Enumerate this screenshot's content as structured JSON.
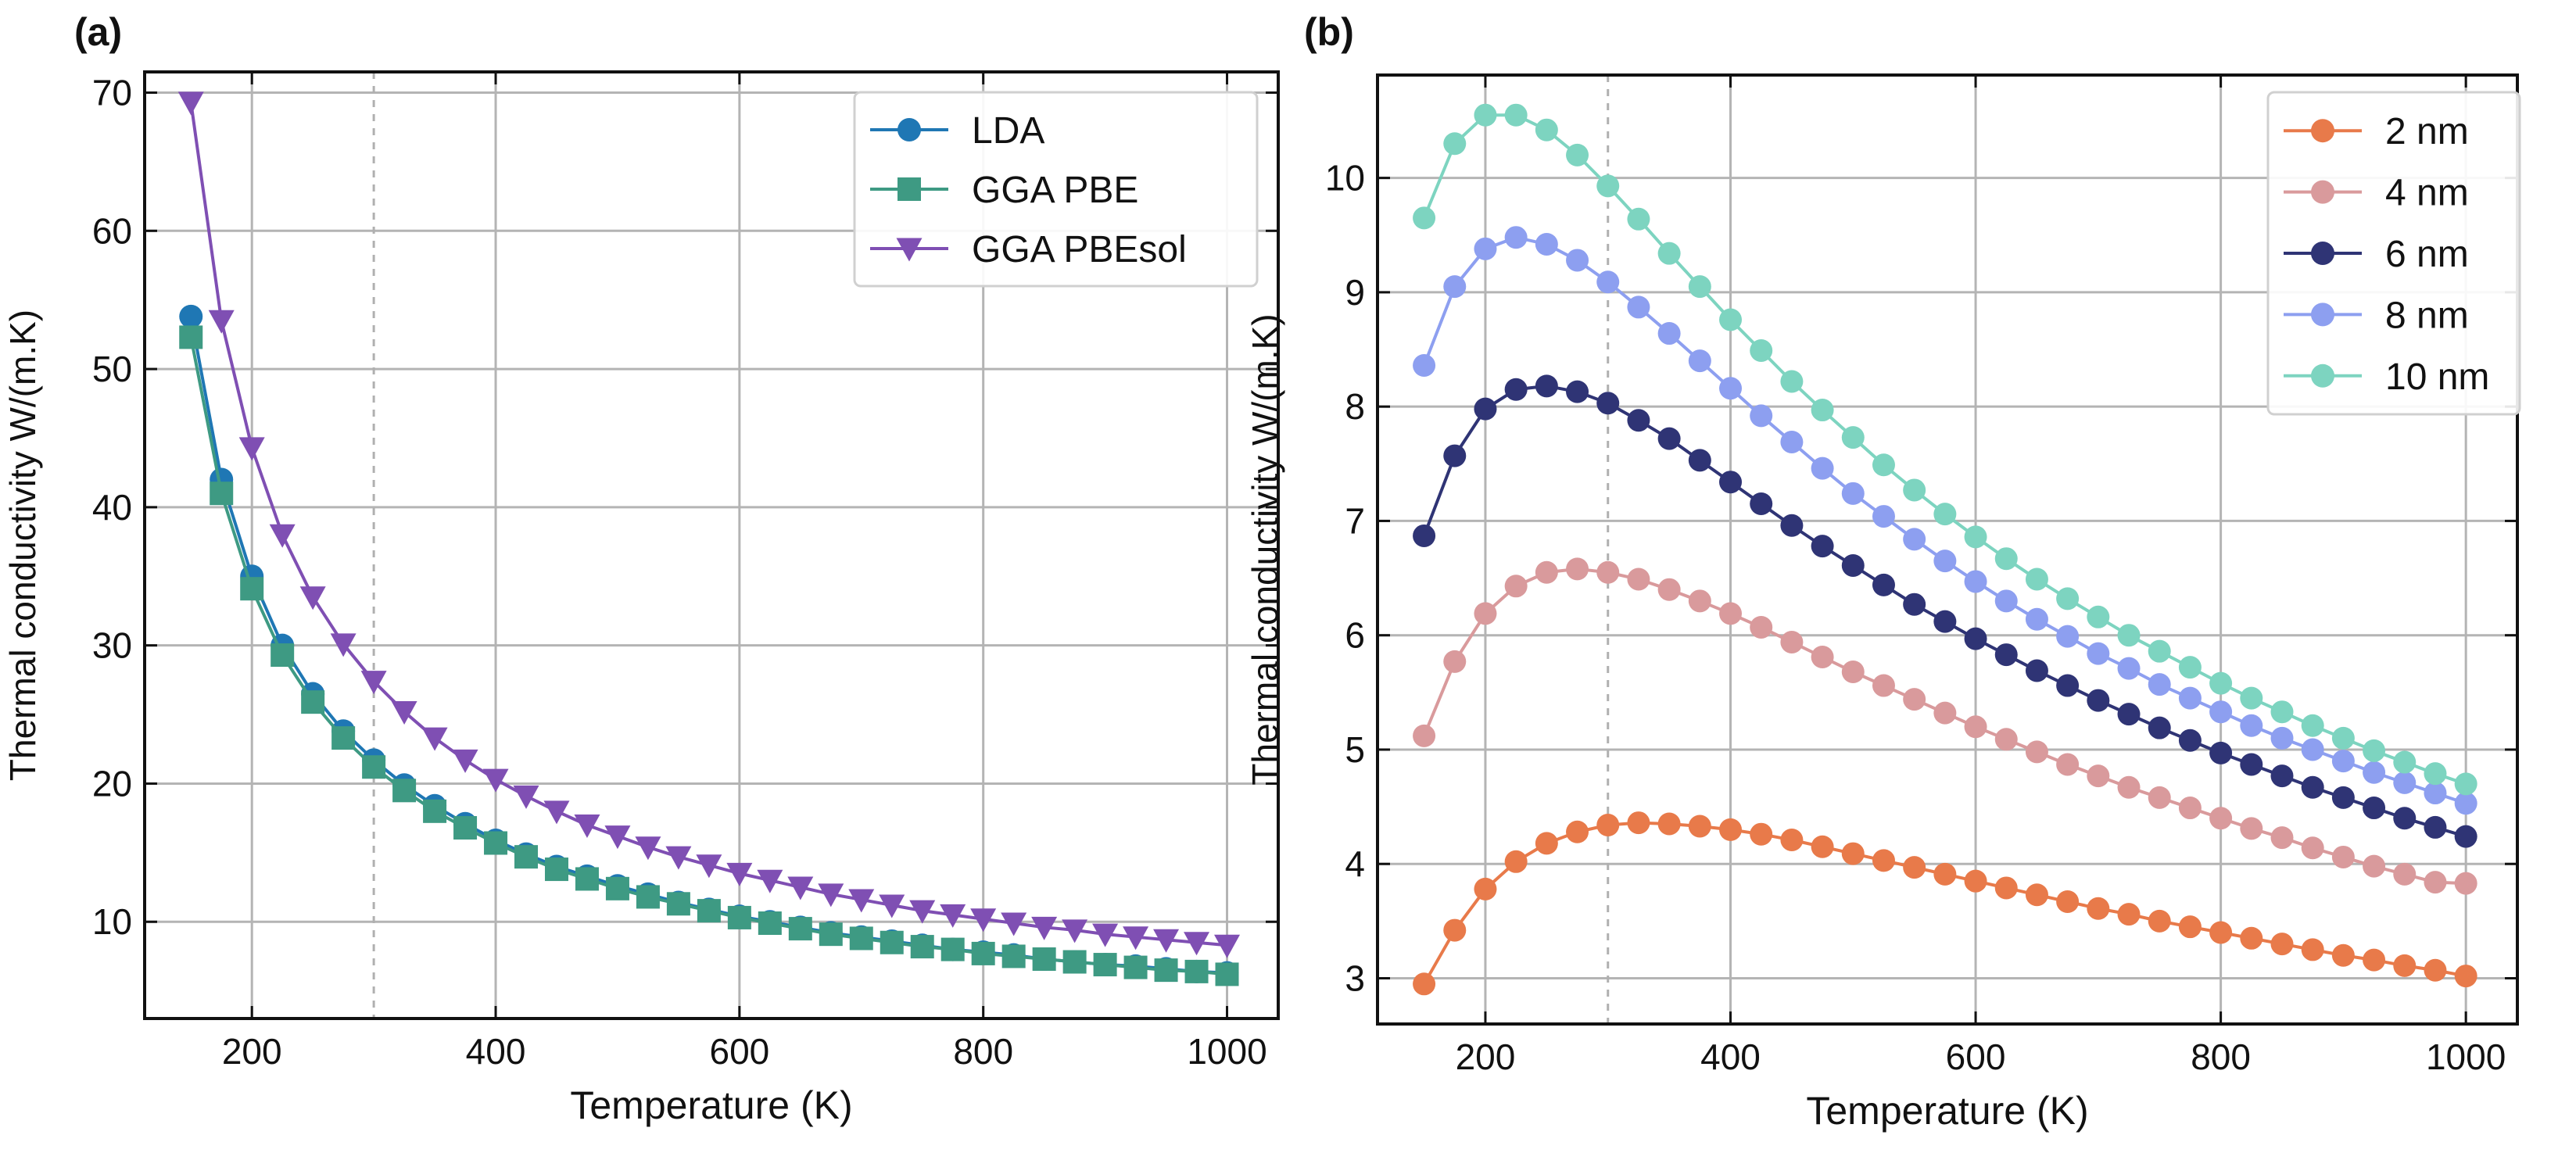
{
  "chart_data": [
    {
      "panel_label": "(a)",
      "type": "line",
      "xlabel": "Temperature (K)",
      "ylabel": "Thermal conductivity W/(m.K)",
      "xlim": [
        112,
        1042
      ],
      "ylim": [
        3,
        71.5
      ],
      "xticks": [
        200,
        400,
        600,
        800,
        1000
      ],
      "yticks": [
        10,
        20,
        30,
        40,
        50,
        60,
        70
      ],
      "grid": true,
      "vline": 300,
      "legend_position": "top-right",
      "x": [
        150,
        175,
        200,
        225,
        250,
        275,
        300,
        325,
        350,
        375,
        400,
        425,
        450,
        475,
        500,
        525,
        550,
        575,
        600,
        625,
        650,
        675,
        700,
        725,
        750,
        775,
        800,
        825,
        850,
        875,
        900,
        925,
        950,
        975,
        1000
      ],
      "series": [
        {
          "name": "LDA",
          "color": "#1f77b4",
          "marker": "circle",
          "values": [
            53.8,
            42.0,
            35.0,
            30.0,
            26.5,
            23.8,
            21.7,
            19.9,
            18.4,
            17.1,
            15.9,
            14.9,
            14.0,
            13.3,
            12.6,
            12.0,
            11.4,
            10.9,
            10.4,
            10.0,
            9.6,
            9.2,
            8.9,
            8.6,
            8.3,
            8.0,
            7.8,
            7.6,
            7.3,
            7.1,
            6.9,
            6.8,
            6.6,
            6.4,
            6.3
          ]
        },
        {
          "name": "GGA PBE",
          "color": "#3e9a83",
          "marker": "square",
          "values": [
            52.3,
            41.0,
            34.1,
            29.3,
            25.9,
            23.3,
            21.2,
            19.5,
            18.0,
            16.8,
            15.7,
            14.7,
            13.8,
            13.1,
            12.4,
            11.8,
            11.3,
            10.8,
            10.3,
            9.9,
            9.5,
            9.1,
            8.8,
            8.5,
            8.2,
            8.0,
            7.7,
            7.5,
            7.3,
            7.1,
            6.9,
            6.7,
            6.5,
            6.4,
            6.2
          ]
        },
        {
          "name": "GGA PBEsol",
          "color": "#7f4fb3",
          "marker": "triangle-down",
          "values": [
            69.3,
            53.5,
            44.3,
            38.0,
            33.5,
            30.1,
            27.4,
            25.2,
            23.3,
            21.7,
            20.3,
            19.1,
            18.0,
            17.0,
            16.2,
            15.4,
            14.7,
            14.1,
            13.5,
            13.0,
            12.5,
            12.0,
            11.6,
            11.2,
            10.8,
            10.5,
            10.2,
            9.9,
            9.6,
            9.4,
            9.1,
            8.9,
            8.7,
            8.5,
            8.3
          ]
        }
      ]
    },
    {
      "panel_label": "(b)",
      "type": "line",
      "xlabel": "Temperature (K)",
      "ylabel": "Thermal conductivity W/(m.K)",
      "xlim": [
        112,
        1042
      ],
      "ylim": [
        2.6,
        10.9
      ],
      "xticks": [
        200,
        400,
        600,
        800,
        1000
      ],
      "yticks": [
        3,
        4,
        5,
        6,
        7,
        8,
        9,
        10
      ],
      "grid": true,
      "vline": 300,
      "legend_position": "top-right",
      "x": [
        150,
        175,
        200,
        225,
        250,
        275,
        300,
        325,
        350,
        375,
        400,
        425,
        450,
        475,
        500,
        525,
        550,
        575,
        600,
        625,
        650,
        675,
        700,
        725,
        750,
        775,
        800,
        825,
        850,
        875,
        900,
        925,
        950,
        975,
        1000
      ],
      "series": [
        {
          "name": "2 nm",
          "color": "#e87a4a",
          "marker": "circle",
          "values": [
            2.95,
            3.42,
            3.78,
            4.02,
            4.18,
            4.28,
            4.34,
            4.36,
            4.35,
            4.33,
            4.3,
            4.26,
            4.21,
            4.15,
            4.09,
            4.03,
            3.97,
            3.91,
            3.85,
            3.79,
            3.73,
            3.67,
            3.61,
            3.56,
            3.5,
            3.45,
            3.4,
            3.35,
            3.3,
            3.25,
            3.2,
            3.16,
            3.11,
            3.07,
            3.02
          ]
        },
        {
          "name": "4 nm",
          "color": "#d99a9c",
          "marker": "circle",
          "values": [
            5.12,
            5.77,
            6.19,
            6.43,
            6.55,
            6.58,
            6.55,
            6.49,
            6.4,
            6.3,
            6.19,
            6.07,
            5.94,
            5.81,
            5.68,
            5.56,
            5.44,
            5.32,
            5.2,
            5.09,
            4.98,
            4.87,
            4.77,
            4.67,
            4.58,
            4.49,
            4.4,
            4.31,
            4.23,
            4.14,
            4.06,
            3.98,
            3.91,
            3.84,
            3.83
          ]
        },
        {
          "name": "6 nm",
          "color": "#2f3475",
          "marker": "circle",
          "values": [
            6.87,
            7.57,
            7.98,
            8.15,
            8.18,
            8.13,
            8.03,
            7.88,
            7.72,
            7.53,
            7.34,
            7.15,
            6.96,
            6.78,
            6.61,
            6.44,
            6.27,
            6.12,
            5.97,
            5.83,
            5.69,
            5.56,
            5.43,
            5.31,
            5.19,
            5.08,
            4.97,
            4.87,
            4.77,
            4.67,
            4.58,
            4.49,
            4.4,
            4.32,
            4.24
          ]
        },
        {
          "name": "8 nm",
          "color": "#8d9ff0",
          "marker": "circle",
          "values": [
            8.36,
            9.05,
            9.38,
            9.48,
            9.42,
            9.28,
            9.09,
            8.87,
            8.64,
            8.4,
            8.16,
            7.92,
            7.69,
            7.46,
            7.24,
            7.04,
            6.84,
            6.65,
            6.47,
            6.3,
            6.14,
            5.99,
            5.84,
            5.71,
            5.57,
            5.45,
            5.33,
            5.21,
            5.1,
            5.0,
            4.9,
            4.8,
            4.71,
            4.62,
            4.53
          ]
        },
        {
          "name": "10 nm",
          "color": "#7dd4c0",
          "marker": "circle",
          "values": [
            9.65,
            10.3,
            10.55,
            10.55,
            10.42,
            10.2,
            9.93,
            9.64,
            9.34,
            9.05,
            8.76,
            8.49,
            8.22,
            7.97,
            7.73,
            7.49,
            7.27,
            7.06,
            6.86,
            6.67,
            6.49,
            6.32,
            6.16,
            6.0,
            5.86,
            5.72,
            5.58,
            5.45,
            5.33,
            5.21,
            5.1,
            4.99,
            4.89,
            4.79,
            4.7
          ]
        }
      ]
    }
  ]
}
